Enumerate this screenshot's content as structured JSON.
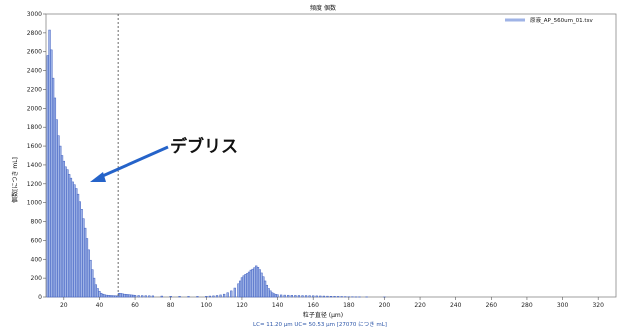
{
  "chart_data": {
    "type": "bar",
    "title": "頻度 個数",
    "xlabel": "粒子直径 (μm)",
    "ylabel": "個数[につき mL]",
    "footer": "LC= 11.20 μm  UC= 50.53 μm [27070 につき mL]",
    "legend": "原液_AP_560um_01.tsv",
    "legend_position": "top-right",
    "annotation": "デブリス",
    "xlim": [
      10,
      330
    ],
    "ylim": [
      0,
      3000
    ],
    "x_ticks": [
      "20",
      "40",
      "60",
      "80",
      "100",
      "120",
      "140",
      "160",
      "180",
      "200",
      "220",
      "240",
      "260",
      "280",
      "300",
      "320"
    ],
    "y_ticks": [
      "0",
      "200",
      "400",
      "600",
      "800",
      "1000",
      "1200",
      "1400",
      "1600",
      "1800",
      "2000",
      "2200",
      "2400",
      "2600",
      "2800",
      "3000"
    ],
    "x_tick_values": [
      20,
      40,
      60,
      80,
      100,
      120,
      140,
      160,
      180,
      200,
      220,
      240,
      260,
      280,
      300,
      320
    ],
    "y_tick_values": [
      0,
      200,
      400,
      600,
      800,
      1000,
      1200,
      1400,
      1600,
      1800,
      2000,
      2200,
      2400,
      2600,
      2800,
      3000
    ],
    "cutoff_line_x": 50.5,
    "bin_width": 1,
    "series": [
      {
        "name": "原液_AP_560um_01.tsv",
        "color": "#3f5fc1",
        "x": [
          11,
          12,
          13,
          14,
          15,
          16,
          17,
          18,
          19,
          20,
          21,
          22,
          23,
          24,
          25,
          26,
          27,
          28,
          29,
          30,
          31,
          32,
          33,
          34,
          35,
          36,
          37,
          38,
          39,
          40,
          41,
          42,
          43,
          44,
          45,
          46,
          47,
          48,
          49,
          50,
          51,
          52,
          53,
          54,
          55,
          56,
          57,
          58,
          59,
          60,
          62,
          64,
          66,
          68,
          70,
          75,
          80,
          85,
          90,
          95,
          100,
          102,
          104,
          106,
          108,
          110,
          112,
          114,
          116,
          118,
          119,
          120,
          121,
          122,
          123,
          124,
          125,
          126,
          127,
          128,
          129,
          130,
          131,
          132,
          133,
          134,
          135,
          136,
          137,
          138,
          139,
          140,
          142,
          144,
          146,
          148,
          150,
          152,
          154,
          156,
          158,
          160,
          162,
          164,
          166,
          168,
          170,
          172,
          174,
          176,
          178,
          180,
          182,
          184,
          186,
          190,
          200
        ],
        "values": [
          2560,
          2830,
          2620,
          2320,
          2110,
          1880,
          1710,
          1600,
          1500,
          1440,
          1380,
          1350,
          1300,
          1260,
          1220,
          1190,
          1150,
          1090,
          1010,
          930,
          830,
          730,
          620,
          500,
          390,
          290,
          200,
          130,
          90,
          60,
          40,
          30,
          24,
          20,
          18,
          16,
          15,
          14,
          13,
          12,
          40,
          38,
          34,
          30,
          28,
          26,
          24,
          22,
          20,
          18,
          16,
          15,
          14,
          13,
          12,
          10,
          8,
          7,
          6,
          6,
          8,
          10,
          12,
          16,
          22,
          30,
          45,
          65,
          95,
          140,
          170,
          205,
          225,
          240,
          250,
          265,
          285,
          295,
          310,
          330,
          315,
          290,
          255,
          215,
          170,
          125,
          90,
          65,
          45,
          35,
          28,
          24,
          22,
          20,
          19,
          18,
          17,
          16,
          15,
          15,
          14,
          13,
          12,
          11,
          10,
          9,
          8,
          7,
          6,
          5,
          4,
          3,
          3,
          2,
          2,
          2,
          1
        ]
      }
    ]
  }
}
